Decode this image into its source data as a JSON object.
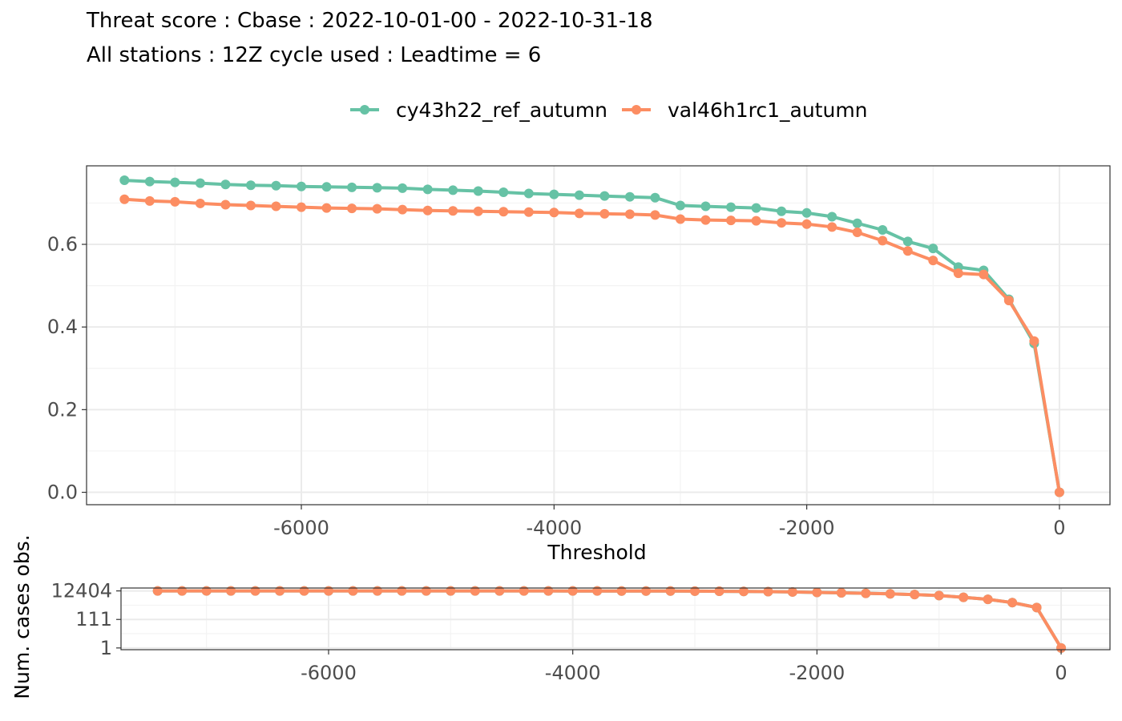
{
  "title": {
    "line1": "Threat score : Cbase : 2022-10-01-00 - 2022-10-31-18",
    "line2": "All stations : 12Z cycle used : Leadtime = 6"
  },
  "chart_data": [
    {
      "type": "line",
      "xlabel": "Threshold",
      "ylabel": "",
      "xlim": [
        -7700,
        400
      ],
      "ylim": [
        -0.03,
        0.79
      ],
      "x_ticks": [
        -6000,
        -4000,
        -2000,
        0
      ],
      "x_tick_labels": [
        "-6000",
        "-4000",
        "-2000",
        "0"
      ],
      "y_ticks": [
        0.0,
        0.2,
        0.4,
        0.6
      ],
      "y_tick_labels": [
        "0.0",
        "0.2",
        "0.4",
        "0.6"
      ],
      "grid": true,
      "legend": "top",
      "x": [
        -7400,
        -7200,
        -7000,
        -6800,
        -6600,
        -6400,
        -6200,
        -6000,
        -5800,
        -5600,
        -5400,
        -5200,
        -5000,
        -4800,
        -4600,
        -4400,
        -4200,
        -4000,
        -3800,
        -3600,
        -3400,
        -3200,
        -3000,
        -2800,
        -2600,
        -2400,
        -2200,
        -2000,
        -1800,
        -1600,
        -1400,
        -1200,
        -1000,
        -800,
        -600,
        -400,
        -200,
        0
      ],
      "series": [
        {
          "name": "cy43h22_ref_autumn",
          "color": "#66c2a5",
          "values": [
            0.755,
            0.752,
            0.75,
            0.748,
            0.745,
            0.743,
            0.742,
            0.74,
            0.739,
            0.738,
            0.737,
            0.736,
            0.733,
            0.731,
            0.729,
            0.726,
            0.723,
            0.721,
            0.719,
            0.717,
            0.715,
            0.713,
            0.694,
            0.692,
            0.69,
            0.688,
            0.68,
            0.676,
            0.667,
            0.651,
            0.635,
            0.607,
            0.59,
            0.545,
            0.537,
            0.467,
            0.36,
            0.0
          ]
        },
        {
          "name": "val46h1rc1_autumn",
          "color": "#fc8d62",
          "values": [
            0.709,
            0.705,
            0.703,
            0.699,
            0.696,
            0.694,
            0.692,
            0.69,
            0.688,
            0.687,
            0.686,
            0.684,
            0.682,
            0.681,
            0.68,
            0.679,
            0.678,
            0.677,
            0.675,
            0.674,
            0.673,
            0.671,
            0.661,
            0.659,
            0.658,
            0.657,
            0.652,
            0.649,
            0.642,
            0.629,
            0.609,
            0.584,
            0.561,
            0.53,
            0.527,
            0.464,
            0.366,
            0.0
          ]
        }
      ]
    },
    {
      "type": "line",
      "xlabel": "",
      "ylabel": "Num. cases obs.",
      "scale": "log",
      "xlim": [
        -7700,
        400
      ],
      "ylim": [
        0.75,
        20000
      ],
      "x_ticks": [
        -6000,
        -4000,
        -2000,
        0
      ],
      "x_tick_labels": [
        "-6000",
        "-4000",
        "-2000",
        "0"
      ],
      "y_ticks": [
        1,
        111,
        12404
      ],
      "y_tick_labels": [
        "1",
        "111",
        "12404"
      ],
      "grid": true,
      "x": [
        -7400,
        -7200,
        -7000,
        -6800,
        -6600,
        -6400,
        -6200,
        -6000,
        -5800,
        -5600,
        -5400,
        -5200,
        -5000,
        -4800,
        -4600,
        -4400,
        -4200,
        -4000,
        -3800,
        -3600,
        -3400,
        -3200,
        -3000,
        -2800,
        -2600,
        -2400,
        -2200,
        -2000,
        -1800,
        -1600,
        -1400,
        -1200,
        -1000,
        -800,
        -600,
        -400,
        -200,
        0
      ],
      "series": [
        {
          "name": "cy43h22_ref_autumn",
          "color": "#66c2a5",
          "values": [
            12404,
            12404,
            12404,
            12403,
            12403,
            12402,
            12401,
            12400,
            12398,
            12396,
            12393,
            12390,
            12385,
            12380,
            12370,
            12360,
            12345,
            12320,
            12290,
            12240,
            12180,
            12100,
            11950,
            11700,
            11400,
            11000,
            10400,
            9700,
            9000,
            8300,
            7600,
            6800,
            5800,
            4300,
            3100,
            1800,
            800,
            1
          ]
        },
        {
          "name": "val46h1rc1_autumn",
          "color": "#fc8d62",
          "values": [
            12404,
            12404,
            12404,
            12403,
            12403,
            12402,
            12401,
            12400,
            12398,
            12396,
            12393,
            12390,
            12385,
            12380,
            12370,
            12360,
            12345,
            12320,
            12290,
            12240,
            12180,
            12100,
            11950,
            11700,
            11400,
            11000,
            10400,
            9700,
            9000,
            8300,
            7600,
            6800,
            5800,
            4300,
            3100,
            1800,
            800,
            1
          ]
        }
      ]
    }
  ]
}
